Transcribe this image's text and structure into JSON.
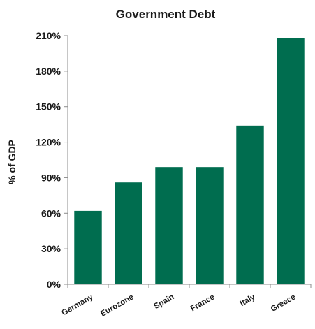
{
  "chart_data": {
    "type": "bar",
    "title": "Government Debt",
    "ylabel": "% of GDP",
    "xlabel": "",
    "categories": [
      "Germany",
      "Eurozone",
      "Spain",
      "France",
      "Italy",
      "Greece"
    ],
    "values": [
      62,
      86,
      99,
      99,
      134,
      208
    ],
    "ylim": [
      0,
      210
    ],
    "yticks": [
      0,
      30,
      60,
      90,
      120,
      150,
      180,
      210
    ],
    "ytick_labels": [
      "0%",
      "30%",
      "60%",
      "90%",
      "120%",
      "150%",
      "180%",
      "210%"
    ],
    "bar_color": "#006d4f",
    "grid": false,
    "legend": "none"
  }
}
